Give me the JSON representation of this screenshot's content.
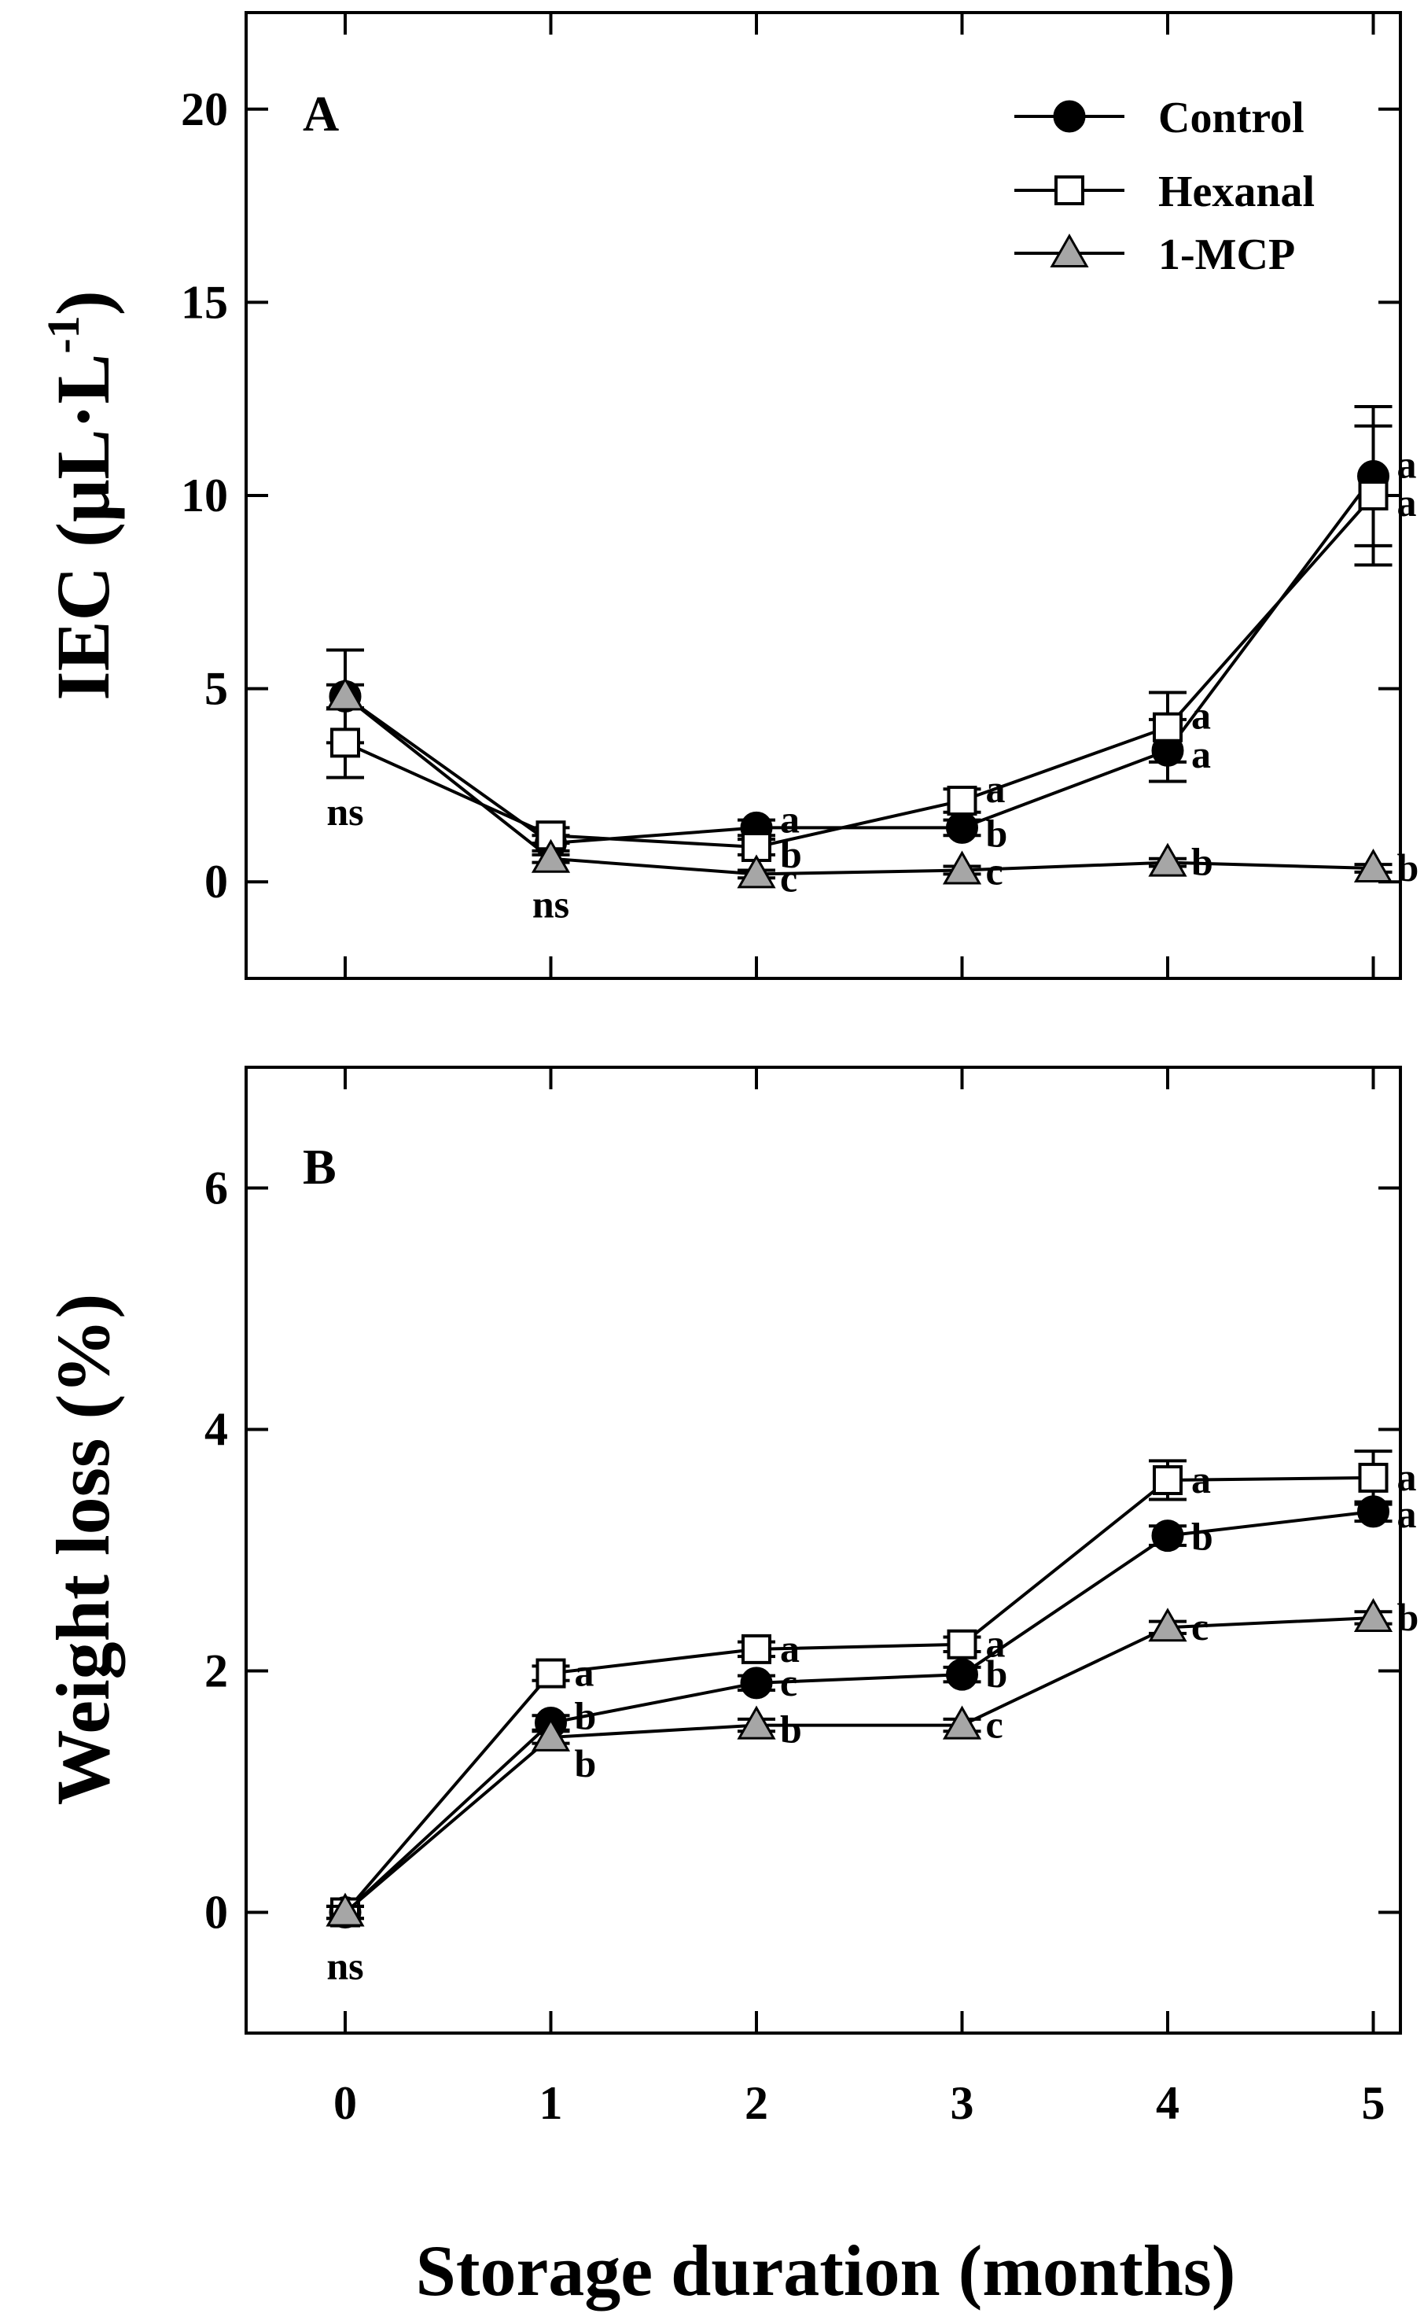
{
  "colors": {
    "control": "#000000",
    "hexanal": "#ffffff",
    "mcp": "#a6a6a6",
    "stroke": "#000000"
  },
  "chart_data": [
    {
      "type": "line",
      "panel": "A",
      "ylabel_main": "IEC (μL·L",
      "ylabel_sup": "-1",
      "ylabel_close": ")",
      "ylim": [
        -2.5,
        22.5
      ],
      "yticks": [
        0,
        5,
        10,
        15,
        20
      ],
      "x": [
        0,
        1,
        2,
        3,
        4,
        5
      ],
      "series": [
        {
          "name": "Control",
          "key": "control",
          "marker": "circle",
          "values": [
            4.8,
            1.0,
            1.4,
            1.4,
            3.4,
            10.5
          ],
          "errors": [
            1.2,
            0.2,
            0.2,
            0.2,
            0.8,
            1.8
          ],
          "labels": [
            "",
            "",
            "a",
            "b",
            "a",
            "a"
          ]
        },
        {
          "name": "Hexanal",
          "key": "hexanal",
          "marker": "square",
          "values": [
            3.6,
            1.2,
            0.9,
            2.1,
            4.0,
            10.0
          ],
          "errors": [
            0.9,
            0.2,
            0.2,
            0.3,
            0.9,
            1.8
          ],
          "labels": [
            "",
            "",
            "b",
            "a",
            "a",
            "a"
          ]
        },
        {
          "name": "1-MCP",
          "key": "mcp",
          "marker": "triangle",
          "values": [
            4.8,
            0.6,
            0.2,
            0.3,
            0.5,
            0.35
          ],
          "errors": [
            0.3,
            0.1,
            0.1,
            0.1,
            0.1,
            0.1
          ],
          "labels": [
            "",
            "",
            "c",
            "c",
            "b",
            "b"
          ]
        }
      ],
      "annotations": [
        {
          "x": 0,
          "y": 1.8,
          "text": "ns"
        },
        {
          "x": 1,
          "y": -0.6,
          "text": "ns"
        }
      ]
    },
    {
      "type": "line",
      "panel": "B",
      "ylabel": "Weight loss (%)",
      "ylim": [
        -1,
        7
      ],
      "yticks": [
        0,
        2,
        4,
        6
      ],
      "x": [
        0,
        1,
        2,
        3,
        4,
        5
      ],
      "series": [
        {
          "name": "Control",
          "key": "control",
          "marker": "circle",
          "values": [
            0,
            1.57,
            1.9,
            1.97,
            3.12,
            3.32
          ],
          "errors": [
            0.05,
            0.06,
            0.06,
            0.06,
            0.08,
            0.08
          ],
          "labels": [
            "",
            "b",
            "c",
            "b",
            "b",
            "a"
          ]
        },
        {
          "name": "Hexanal",
          "key": "hexanal",
          "marker": "square",
          "values": [
            0,
            1.98,
            2.18,
            2.22,
            3.58,
            3.6
          ],
          "errors": [
            0.05,
            0.06,
            0.06,
            0.06,
            0.16,
            0.22
          ],
          "labels": [
            "",
            "a",
            "a",
            "a",
            "a",
            "a"
          ]
        },
        {
          "name": "1-MCP",
          "key": "mcp",
          "marker": "triangle",
          "values": [
            0,
            1.45,
            1.55,
            1.55,
            2.36,
            2.44
          ],
          "errors": [
            0.05,
            0.05,
            0.05,
            0.05,
            0.05,
            0.05
          ],
          "labels": [
            "",
            "b",
            "b",
            "c",
            "c",
            "b"
          ]
        }
      ],
      "annotations": [
        {
          "x": 0,
          "y": -0.45,
          "text": "ns"
        }
      ]
    }
  ],
  "xlabel": "Storage duration (months)",
  "xticks": [
    "0",
    "1",
    "2",
    "3",
    "4",
    "5"
  ],
  "legend": [
    {
      "label": "Control",
      "key": "control",
      "marker": "circle"
    },
    {
      "label": "Hexanal",
      "key": "hexanal",
      "marker": "square"
    },
    {
      "label": "1-MCP",
      "key": "mcp",
      "marker": "triangle"
    }
  ]
}
